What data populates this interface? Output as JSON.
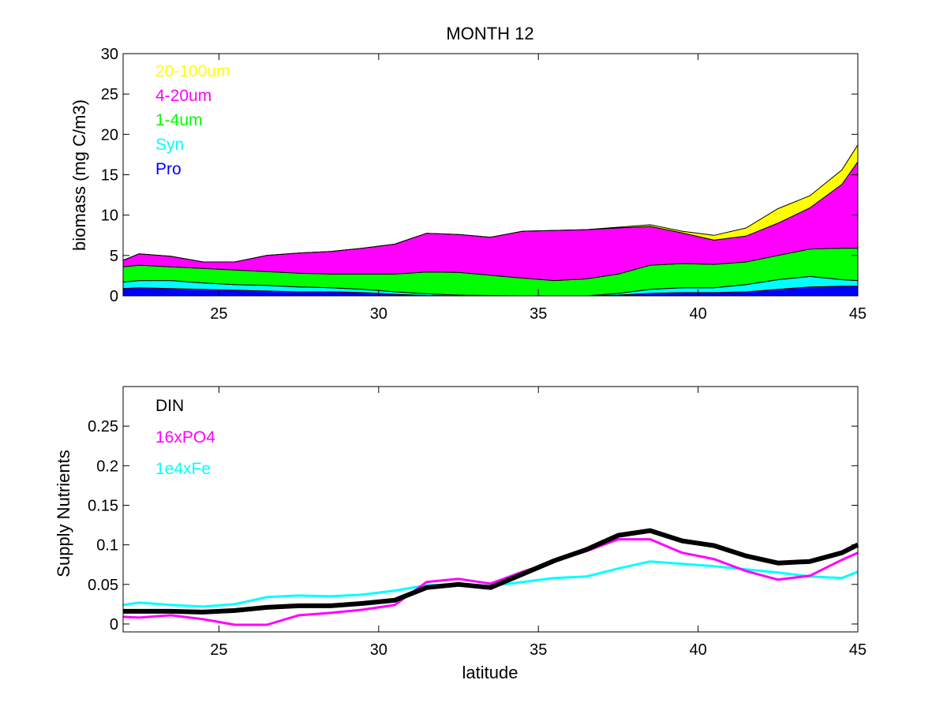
{
  "chart_data": [
    {
      "type": "area",
      "stacked": true,
      "title": "MONTH 12",
      "xlabel": "",
      "ylabel": "biomass (mg C/m3)",
      "xlim": [
        22,
        45
      ],
      "ylim": [
        0,
        30
      ],
      "xticks": [
        25,
        30,
        35,
        40,
        45
      ],
      "yticks": [
        0,
        5,
        10,
        15,
        20,
        25,
        30
      ],
      "grid": false,
      "legend_position": "top-left",
      "x": [
        22,
        22.5,
        23.5,
        24.5,
        25.5,
        26.5,
        27.5,
        28.5,
        29.5,
        30.5,
        31.5,
        32.5,
        33.5,
        34.5,
        35.5,
        36.5,
        37.5,
        38.5,
        39.5,
        40.5,
        41.5,
        42.5,
        43.5,
        44.5,
        45
      ],
      "series": [
        {
          "name": "Pro",
          "color": "#0000ff",
          "values": [
            0.9,
            1.0,
            0.9,
            0.8,
            0.7,
            0.6,
            0.5,
            0.5,
            0.4,
            0.2,
            0.05,
            0.0,
            0.0,
            0.0,
            0.0,
            0.0,
            0.1,
            0.3,
            0.4,
            0.4,
            0.5,
            0.8,
            1.1,
            1.2,
            1.2
          ]
        },
        {
          "name": "Syn",
          "color": "#00ffff",
          "values": [
            0.8,
            0.9,
            1.0,
            0.8,
            0.7,
            0.7,
            0.6,
            0.5,
            0.4,
            0.3,
            0.2,
            0.1,
            0.05,
            0.0,
            0.0,
            0.0,
            0.2,
            0.5,
            0.6,
            0.6,
            0.9,
            1.2,
            1.3,
            0.8,
            0.7
          ]
        },
        {
          "name": "1-4um",
          "color": "#00ff00",
          "values": [
            1.9,
            1.9,
            1.7,
            1.8,
            1.8,
            1.7,
            1.7,
            1.7,
            1.9,
            2.2,
            2.7,
            2.8,
            2.5,
            2.2,
            1.9,
            2.1,
            2.4,
            3.0,
            3.0,
            2.9,
            2.8,
            3.0,
            3.4,
            3.9,
            4.0
          ]
        },
        {
          "name": "4-20um",
          "color": "#ff00ff",
          "values": [
            0.8,
            1.4,
            1.3,
            0.8,
            1.0,
            2.0,
            2.5,
            2.8,
            3.2,
            3.7,
            4.8,
            4.7,
            4.7,
            5.8,
            6.2,
            6.1,
            5.7,
            4.8,
            3.8,
            3.0,
            3.2,
            4.0,
            5.1,
            7.9,
            10.7
          ]
        },
        {
          "name": "20-100um",
          "color": "#ffff00",
          "values": [
            0.0,
            0.0,
            0.0,
            0.0,
            0.0,
            0.0,
            0.0,
            0.0,
            0.0,
            0.0,
            0.0,
            0.0,
            0.0,
            0.0,
            0.0,
            0.0,
            0.1,
            0.2,
            0.2,
            0.6,
            1.0,
            1.8,
            1.5,
            1.8,
            2.1
          ]
        }
      ]
    },
    {
      "type": "line",
      "title": "",
      "xlabel": "latitude",
      "ylabel": "Supply Nutrients",
      "xlim": [
        22,
        45
      ],
      "ylim": [
        -0.01,
        0.3
      ],
      "xticks": [
        25,
        30,
        35,
        40,
        45
      ],
      "yticks": [
        0,
        0.05,
        0.1,
        0.15,
        0.2,
        0.25
      ],
      "ytick_labels": [
        "0",
        "0.05",
        "0.1",
        "0.15",
        "0.2",
        "0.25"
      ],
      "grid": false,
      "legend_position": "top-left",
      "x": [
        22,
        22.5,
        23.5,
        24.5,
        25.5,
        26.5,
        27.5,
        28.5,
        29.5,
        30.5,
        31.5,
        32.5,
        33.5,
        34.5,
        35.5,
        36.5,
        37.5,
        38.5,
        39.5,
        40.5,
        41.5,
        42.5,
        43.5,
        44.5,
        45
      ],
      "series": [
        {
          "name": "DIN",
          "color": "#000000",
          "width": 6,
          "values": [
            0.016,
            0.016,
            0.016,
            0.015,
            0.017,
            0.021,
            0.023,
            0.023,
            0.026,
            0.03,
            0.046,
            0.05,
            0.046,
            0.063,
            0.08,
            0.094,
            0.112,
            0.118,
            0.105,
            0.099,
            0.086,
            0.077,
            0.079,
            0.09,
            0.1
          ]
        },
        {
          "name": "16xPO4",
          "color": "#ff00ff",
          "width": 3,
          "values": [
            0.009,
            0.008,
            0.011,
            0.006,
            -0.001,
            -0.001,
            0.011,
            0.014,
            0.018,
            0.024,
            0.053,
            0.057,
            0.051,
            0.066,
            0.079,
            0.092,
            0.107,
            0.107,
            0.09,
            0.082,
            0.067,
            0.056,
            0.061,
            0.081,
            0.09
          ]
        },
        {
          "name": "1e4xFe",
          "color": "#00ffff",
          "width": 3,
          "values": [
            0.024,
            0.027,
            0.024,
            0.022,
            0.025,
            0.034,
            0.036,
            0.035,
            0.037,
            0.042,
            0.049,
            0.05,
            0.048,
            0.053,
            0.058,
            0.06,
            0.07,
            0.079,
            0.076,
            0.073,
            0.069,
            0.065,
            0.06,
            0.058,
            0.066
          ]
        }
      ]
    }
  ]
}
